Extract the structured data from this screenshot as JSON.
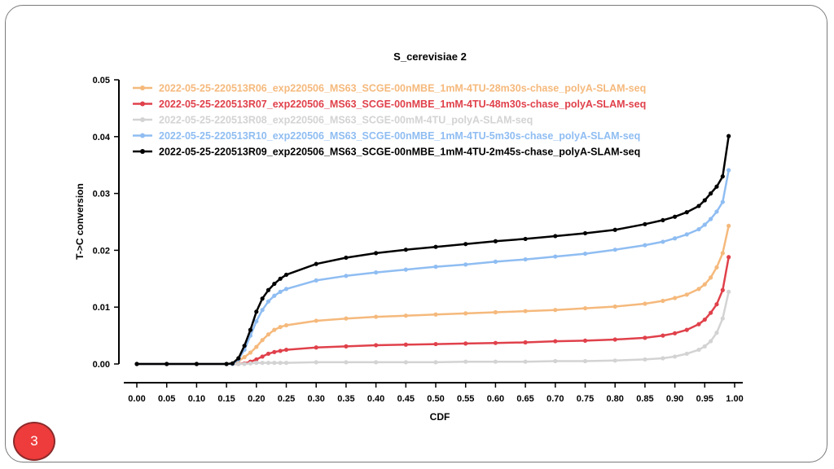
{
  "slide": {
    "page_number": "3"
  },
  "chart_data": {
    "type": "line",
    "title": "S_cerevisiae 2",
    "xlabel": "CDF",
    "ylabel": "T->C conversion",
    "xlim": [
      0,
      1
    ],
    "ylim": [
      0,
      0.05
    ],
    "x_ticks": [
      "0.00",
      "0.05",
      "0.10",
      "0.15",
      "0.20",
      "0.25",
      "0.30",
      "0.35",
      "0.40",
      "0.45",
      "0.50",
      "0.55",
      "0.60",
      "0.65",
      "0.70",
      "0.75",
      "0.80",
      "0.85",
      "0.90",
      "0.95",
      "1.00"
    ],
    "y_ticks": [
      "0.00",
      "0.01",
      "0.02",
      "0.03",
      "0.04",
      "0.05"
    ],
    "grid": false,
    "legend_position": "top-left",
    "x": [
      0.0,
      0.05,
      0.1,
      0.15,
      0.16,
      0.17,
      0.18,
      0.19,
      0.2,
      0.21,
      0.22,
      0.23,
      0.24,
      0.25,
      0.3,
      0.35,
      0.4,
      0.45,
      0.5,
      0.55,
      0.6,
      0.65,
      0.7,
      0.75,
      0.8,
      0.85,
      0.88,
      0.9,
      0.92,
      0.94,
      0.95,
      0.96,
      0.97,
      0.98,
      0.99
    ],
    "series": [
      {
        "name": "2022-05-25-220513R06_exp220506_MS63_SCGE-00nMBE_1mM-4TU-28m30s-chase_polyA-SLAM-seq",
        "color": "#f5b97c",
        "values": [
          0,
          0,
          0,
          0,
          0,
          0.0005,
          0.0012,
          0.002,
          0.003,
          0.0042,
          0.0052,
          0.006,
          0.0065,
          0.0068,
          0.0076,
          0.008,
          0.0083,
          0.0085,
          0.0087,
          0.0089,
          0.0091,
          0.0093,
          0.0095,
          0.0098,
          0.0101,
          0.0106,
          0.0111,
          0.0116,
          0.0122,
          0.0132,
          0.014,
          0.0152,
          0.017,
          0.0195,
          0.0243
        ]
      },
      {
        "name": "2022-05-25-220513R07_exp220506_MS63_SCGE-00nMBE_1mM-4TU-48m30s-chase_polyA-SLAM-seq",
        "color": "#e0414b",
        "values": [
          0,
          0,
          0,
          0,
          0,
          0,
          0.0001,
          0.0004,
          0.0008,
          0.0013,
          0.0018,
          0.0021,
          0.0023,
          0.0025,
          0.0029,
          0.0031,
          0.0033,
          0.0034,
          0.0035,
          0.0036,
          0.0037,
          0.0038,
          0.004,
          0.0041,
          0.0043,
          0.0046,
          0.005,
          0.0054,
          0.006,
          0.007,
          0.0078,
          0.009,
          0.0105,
          0.013,
          0.0188
        ]
      },
      {
        "name": "2022-05-25-220513R08_exp220506_MS63_SCGE-00mM-4TU_polyA-SLAM-seq",
        "color": "#d3d3d3",
        "values": [
          0,
          0,
          0,
          0,
          0,
          0,
          0,
          0.0001,
          0.0002,
          0.0002,
          0.0002,
          0.0002,
          0.0002,
          0.0002,
          0.0003,
          0.0003,
          0.0003,
          0.0003,
          0.0003,
          0.0004,
          0.0004,
          0.0004,
          0.0005,
          0.0005,
          0.0006,
          0.0008,
          0.001,
          0.0013,
          0.0018,
          0.0025,
          0.0031,
          0.004,
          0.0055,
          0.008,
          0.0127
        ]
      },
      {
        "name": "2022-05-25-220513R10_exp220506_MS63_SCGE-00nMBE_1mM-4TU-5m30s-chase_polyA-SLAM-seq",
        "color": "#8fbdf2",
        "values": [
          0,
          0,
          0,
          0,
          0,
          0.0008,
          0.0025,
          0.005,
          0.0075,
          0.0095,
          0.011,
          0.012,
          0.0127,
          0.0132,
          0.0147,
          0.0155,
          0.0161,
          0.0166,
          0.0171,
          0.0175,
          0.018,
          0.0184,
          0.0189,
          0.0194,
          0.0201,
          0.0209,
          0.0215,
          0.0221,
          0.0228,
          0.0237,
          0.0245,
          0.0255,
          0.0268,
          0.0285,
          0.0341
        ]
      },
      {
        "name": "2022-05-25-220513R09_exp220506_MS63_SCGE-00nMBE_1mM-4TU-2m45s-chase_polyA-SLAM-seq",
        "color": "#000000",
        "values": [
          0,
          0,
          0,
          0,
          0.0001,
          0.001,
          0.0032,
          0.006,
          0.0092,
          0.0115,
          0.013,
          0.0141,
          0.015,
          0.0157,
          0.0176,
          0.0187,
          0.0195,
          0.0201,
          0.0206,
          0.0211,
          0.0216,
          0.022,
          0.0225,
          0.023,
          0.0236,
          0.0246,
          0.0253,
          0.0259,
          0.0267,
          0.0278,
          0.0288,
          0.03,
          0.0312,
          0.033,
          0.0401
        ]
      }
    ]
  }
}
